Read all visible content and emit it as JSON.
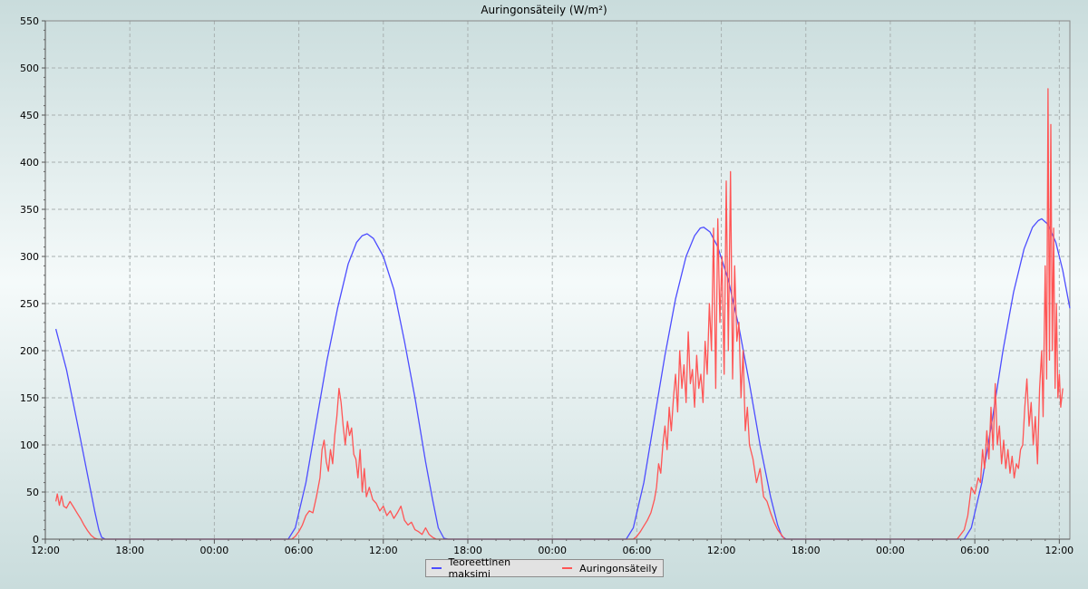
{
  "chart_data": {
    "type": "line",
    "title": "Auringonsäteily (W/m²)",
    "xlabel": "",
    "ylabel": "",
    "ylim": [
      0,
      550
    ],
    "yticks": [
      0,
      50,
      100,
      150,
      200,
      250,
      300,
      350,
      400,
      450,
      500,
      550
    ],
    "x_unit": "hours",
    "xlim": [
      0,
      72.75
    ],
    "xticks": [
      {
        "x": 0,
        "label": "12:00"
      },
      {
        "x": 6,
        "label": "18:00"
      },
      {
        "x": 12,
        "label": "00:00"
      },
      {
        "x": 18,
        "label": "06:00"
      },
      {
        "x": 24,
        "label": "12:00"
      },
      {
        "x": 30,
        "label": "18:00"
      },
      {
        "x": 36,
        "label": "00:00"
      },
      {
        "x": 42,
        "label": "06:00"
      },
      {
        "x": 48,
        "label": "12:00"
      },
      {
        "x": 54,
        "label": "18:00"
      },
      {
        "x": 60,
        "label": "00:00"
      },
      {
        "x": 66,
        "label": "06:00"
      },
      {
        "x": 72,
        "label": "12:00"
      }
    ],
    "grid": true,
    "legend_position": "bottom",
    "series": [
      {
        "name": "Teoreettinen maksimi",
        "color": "#4d4dff",
        "points": [
          [
            0.75,
            223
          ],
          [
            1.5,
            180
          ],
          [
            2.25,
            125
          ],
          [
            3,
            68
          ],
          [
            3.5,
            30
          ],
          [
            3.8,
            10
          ],
          [
            4,
            2
          ],
          [
            4.25,
            0
          ],
          [
            17.25,
            0
          ],
          [
            17.75,
            12
          ],
          [
            18.5,
            60
          ],
          [
            19.25,
            125
          ],
          [
            20,
            190
          ],
          [
            20.75,
            245
          ],
          [
            21.5,
            292
          ],
          [
            22.1,
            315
          ],
          [
            22.5,
            322
          ],
          [
            22.85,
            324
          ],
          [
            23.3,
            319
          ],
          [
            24,
            300
          ],
          [
            24.75,
            265
          ],
          [
            25.5,
            210
          ],
          [
            26.25,
            150
          ],
          [
            27,
            82
          ],
          [
            27.5,
            42
          ],
          [
            27.9,
            12
          ],
          [
            28.3,
            1
          ],
          [
            28.6,
            0
          ],
          [
            41.25,
            0
          ],
          [
            41.75,
            12
          ],
          [
            42.5,
            60
          ],
          [
            43.25,
            128
          ],
          [
            44,
            195
          ],
          [
            44.75,
            255
          ],
          [
            45.5,
            300
          ],
          [
            46.1,
            322
          ],
          [
            46.5,
            330
          ],
          [
            46.75,
            331
          ],
          [
            47.2,
            326
          ],
          [
            47.75,
            310
          ],
          [
            48.5,
            275
          ],
          [
            49.25,
            225
          ],
          [
            50,
            165
          ],
          [
            50.75,
            100
          ],
          [
            51.5,
            45
          ],
          [
            52,
            15
          ],
          [
            52.3,
            3
          ],
          [
            52.6,
            0
          ],
          [
            65.25,
            0
          ],
          [
            65.75,
            12
          ],
          [
            66.5,
            60
          ],
          [
            67.25,
            128
          ],
          [
            68,
            200
          ],
          [
            68.75,
            262
          ],
          [
            69.5,
            308
          ],
          [
            70.1,
            331
          ],
          [
            70.5,
            338
          ],
          [
            70.75,
            340
          ],
          [
            71.2,
            334
          ],
          [
            71.75,
            315
          ],
          [
            72.25,
            285
          ],
          [
            72.75,
            245
          ]
        ]
      },
      {
        "name": "Auringonsäteily",
        "color": "#ff5555",
        "points": [
          [
            0.75,
            40
          ],
          [
            0.85,
            48
          ],
          [
            1.0,
            36
          ],
          [
            1.15,
            46
          ],
          [
            1.3,
            35
          ],
          [
            1.5,
            33
          ],
          [
            1.75,
            40
          ],
          [
            2.0,
            34
          ],
          [
            2.25,
            28
          ],
          [
            2.5,
            22
          ],
          [
            2.75,
            15
          ],
          [
            3.0,
            9
          ],
          [
            3.25,
            4
          ],
          [
            3.5,
            1
          ],
          [
            3.75,
            0
          ],
          [
            17.5,
            0
          ],
          [
            17.75,
            3
          ],
          [
            18.0,
            8
          ],
          [
            18.25,
            15
          ],
          [
            18.5,
            25
          ],
          [
            18.75,
            30
          ],
          [
            19.0,
            28
          ],
          [
            19.25,
            45
          ],
          [
            19.5,
            65
          ],
          [
            19.65,
            95
          ],
          [
            19.8,
            105
          ],
          [
            19.95,
            82
          ],
          [
            20.1,
            72
          ],
          [
            20.25,
            95
          ],
          [
            20.4,
            80
          ],
          [
            20.55,
            110
          ],
          [
            20.7,
            130
          ],
          [
            20.85,
            160
          ],
          [
            21.0,
            145
          ],
          [
            21.15,
            120
          ],
          [
            21.3,
            100
          ],
          [
            21.45,
            125
          ],
          [
            21.6,
            110
          ],
          [
            21.75,
            118
          ],
          [
            21.9,
            90
          ],
          [
            22.05,
            85
          ],
          [
            22.2,
            65
          ],
          [
            22.35,
            95
          ],
          [
            22.5,
            50
          ],
          [
            22.65,
            75
          ],
          [
            22.8,
            45
          ],
          [
            23.0,
            55
          ],
          [
            23.25,
            42
          ],
          [
            23.5,
            38
          ],
          [
            23.75,
            30
          ],
          [
            24.0,
            35
          ],
          [
            24.25,
            25
          ],
          [
            24.5,
            30
          ],
          [
            24.75,
            22
          ],
          [
            25.0,
            28
          ],
          [
            25.25,
            35
          ],
          [
            25.5,
            20
          ],
          [
            25.75,
            15
          ],
          [
            26.0,
            18
          ],
          [
            26.25,
            10
          ],
          [
            26.5,
            8
          ],
          [
            26.75,
            5
          ],
          [
            27.0,
            12
          ],
          [
            27.25,
            5
          ],
          [
            27.5,
            2
          ],
          [
            27.75,
            0
          ],
          [
            41.75,
            0
          ],
          [
            42.0,
            3
          ],
          [
            42.25,
            8
          ],
          [
            42.5,
            14
          ],
          [
            42.75,
            20
          ],
          [
            43.0,
            28
          ],
          [
            43.25,
            42
          ],
          [
            43.4,
            55
          ],
          [
            43.55,
            80
          ],
          [
            43.7,
            70
          ],
          [
            43.85,
            100
          ],
          [
            44.0,
            120
          ],
          [
            44.15,
            95
          ],
          [
            44.3,
            140
          ],
          [
            44.45,
            115
          ],
          [
            44.6,
            150
          ],
          [
            44.75,
            175
          ],
          [
            44.9,
            135
          ],
          [
            45.05,
            200
          ],
          [
            45.2,
            160
          ],
          [
            45.35,
            185
          ],
          [
            45.5,
            145
          ],
          [
            45.65,
            220
          ],
          [
            45.8,
            165
          ],
          [
            45.95,
            180
          ],
          [
            46.1,
            140
          ],
          [
            46.25,
            195
          ],
          [
            46.4,
            160
          ],
          [
            46.55,
            175
          ],
          [
            46.7,
            145
          ],
          [
            46.85,
            210
          ],
          [
            47.0,
            175
          ],
          [
            47.15,
            250
          ],
          [
            47.3,
            200
          ],
          [
            47.45,
            330
          ],
          [
            47.6,
            160
          ],
          [
            47.75,
            340
          ],
          [
            47.9,
            230
          ],
          [
            48.05,
            300
          ],
          [
            48.2,
            175
          ],
          [
            48.35,
            380
          ],
          [
            48.5,
            200
          ],
          [
            48.65,
            390
          ],
          [
            48.8,
            170
          ],
          [
            48.95,
            290
          ],
          [
            49.1,
            210
          ],
          [
            49.25,
            230
          ],
          [
            49.4,
            150
          ],
          [
            49.55,
            200
          ],
          [
            49.7,
            115
          ],
          [
            49.85,
            140
          ],
          [
            50.0,
            100
          ],
          [
            50.25,
            85
          ],
          [
            50.5,
            60
          ],
          [
            50.75,
            75
          ],
          [
            51.0,
            45
          ],
          [
            51.25,
            40
          ],
          [
            51.5,
            28
          ],
          [
            51.75,
            18
          ],
          [
            52.0,
            10
          ],
          [
            52.25,
            5
          ],
          [
            52.5,
            0
          ],
          [
            64.75,
            0
          ],
          [
            65.0,
            5
          ],
          [
            65.25,
            10
          ],
          [
            65.5,
            25
          ],
          [
            65.75,
            55
          ],
          [
            66.0,
            48
          ],
          [
            66.25,
            65
          ],
          [
            66.4,
            60
          ],
          [
            66.55,
            95
          ],
          [
            66.7,
            75
          ],
          [
            66.85,
            115
          ],
          [
            67.0,
            85
          ],
          [
            67.15,
            140
          ],
          [
            67.3,
            95
          ],
          [
            67.45,
            165
          ],
          [
            67.6,
            100
          ],
          [
            67.75,
            120
          ],
          [
            67.9,
            80
          ],
          [
            68.05,
            105
          ],
          [
            68.2,
            75
          ],
          [
            68.35,
            95
          ],
          [
            68.5,
            70
          ],
          [
            68.65,
            88
          ],
          [
            68.8,
            65
          ],
          [
            68.95,
            80
          ],
          [
            69.1,
            75
          ],
          [
            69.25,
            95
          ],
          [
            69.4,
            100
          ],
          [
            69.55,
            140
          ],
          [
            69.7,
            170
          ],
          [
            69.85,
            120
          ],
          [
            70.0,
            145
          ],
          [
            70.15,
            100
          ],
          [
            70.3,
            130
          ],
          [
            70.45,
            80
          ],
          [
            70.6,
            160
          ],
          [
            70.75,
            200
          ],
          [
            70.85,
            130
          ],
          [
            71.0,
            290
          ],
          [
            71.1,
            170
          ],
          [
            71.2,
            478
          ],
          [
            71.3,
            190
          ],
          [
            71.4,
            440
          ],
          [
            71.5,
            200
          ],
          [
            71.6,
            330
          ],
          [
            71.7,
            160
          ],
          [
            71.8,
            250
          ],
          [
            71.9,
            150
          ],
          [
            72.0,
            175
          ],
          [
            72.1,
            140
          ],
          [
            72.25,
            160
          ]
        ]
      }
    ]
  },
  "legend": {
    "items": [
      {
        "label": "Teoreettinen maksimi",
        "color": "#4d4dff"
      },
      {
        "label": "Auringonsäteily",
        "color": "#ff5555"
      }
    ]
  }
}
